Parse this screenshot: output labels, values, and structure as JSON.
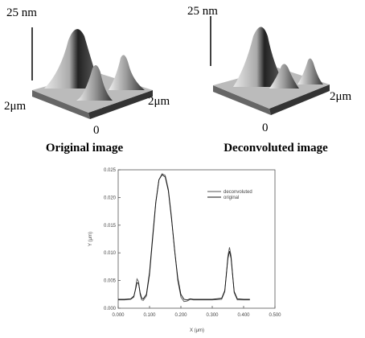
{
  "panels": [
    {
      "height_label": "25 nm",
      "depth_label": "2μm",
      "width_label": "2μm",
      "origin_label": "0",
      "caption": "Original image"
    },
    {
      "height_label": "25 nm",
      "width_label": "2μm",
      "origin_label": "0",
      "caption": "Deconvoluted image"
    }
  ],
  "chart_data": {
    "type": "line",
    "x_label": "X (μm)",
    "y_label": "Y (μm)",
    "x": [
      0.0,
      0.02,
      0.04,
      0.05,
      0.055,
      0.06,
      0.065,
      0.07,
      0.075,
      0.08,
      0.09,
      0.1,
      0.11,
      0.12,
      0.13,
      0.14,
      0.15,
      0.16,
      0.17,
      0.18,
      0.19,
      0.2,
      0.21,
      0.22,
      0.23,
      0.24,
      0.26,
      0.3,
      0.33,
      0.34,
      0.345,
      0.35,
      0.355,
      0.36,
      0.365,
      0.37,
      0.38,
      0.4,
      0.42
    ],
    "series": [
      {
        "name": "deconvoluted",
        "color": "#555555",
        "values": [
          0.0015,
          0.0015,
          0.0016,
          0.002,
          0.0035,
          0.0053,
          0.0048,
          0.0025,
          0.0015,
          0.0014,
          0.0022,
          0.006,
          0.0125,
          0.019,
          0.0232,
          0.0243,
          0.024,
          0.0215,
          0.0165,
          0.0105,
          0.005,
          0.002,
          0.0012,
          0.0013,
          0.0016,
          0.0015,
          0.0015,
          0.0015,
          0.0016,
          0.003,
          0.006,
          0.0095,
          0.011,
          0.0095,
          0.006,
          0.0028,
          0.0015,
          0.0015,
          0.0015
        ]
      },
      {
        "name": "original",
        "color": "#111111",
        "values": [
          0.0016,
          0.0016,
          0.0017,
          0.0022,
          0.0033,
          0.0046,
          0.0045,
          0.0028,
          0.0018,
          0.0017,
          0.0025,
          0.0065,
          0.013,
          0.0192,
          0.0232,
          0.0241,
          0.0237,
          0.0212,
          0.0162,
          0.0105,
          0.0055,
          0.0025,
          0.0016,
          0.0015,
          0.0017,
          0.0016,
          0.0016,
          0.0016,
          0.0018,
          0.0032,
          0.0062,
          0.009,
          0.0103,
          0.009,
          0.006,
          0.003,
          0.0017,
          0.0016,
          0.0016
        ]
      }
    ],
    "xlim": [
      0,
      0.5
    ],
    "xticks": [
      {
        "value": 0,
        "label": "0.000"
      },
      {
        "value": 0.1,
        "label": "0.100"
      },
      {
        "value": 0.2,
        "label": "0.200"
      },
      {
        "value": 0.3,
        "label": "0.300"
      },
      {
        "value": 0.4,
        "label": "0.400"
      },
      {
        "value": 0.5,
        "label": "0.500"
      }
    ],
    "ylim": [
      0,
      0.025
    ],
    "yticks": [
      {
        "value": 0,
        "label": "0.000"
      },
      0.005,
      {
        "value": 0.01,
        "label": "0.010"
      },
      0.015,
      {
        "value": 0.02,
        "label": "0.020"
      },
      0.025
    ],
    "legend": "upper right"
  }
}
